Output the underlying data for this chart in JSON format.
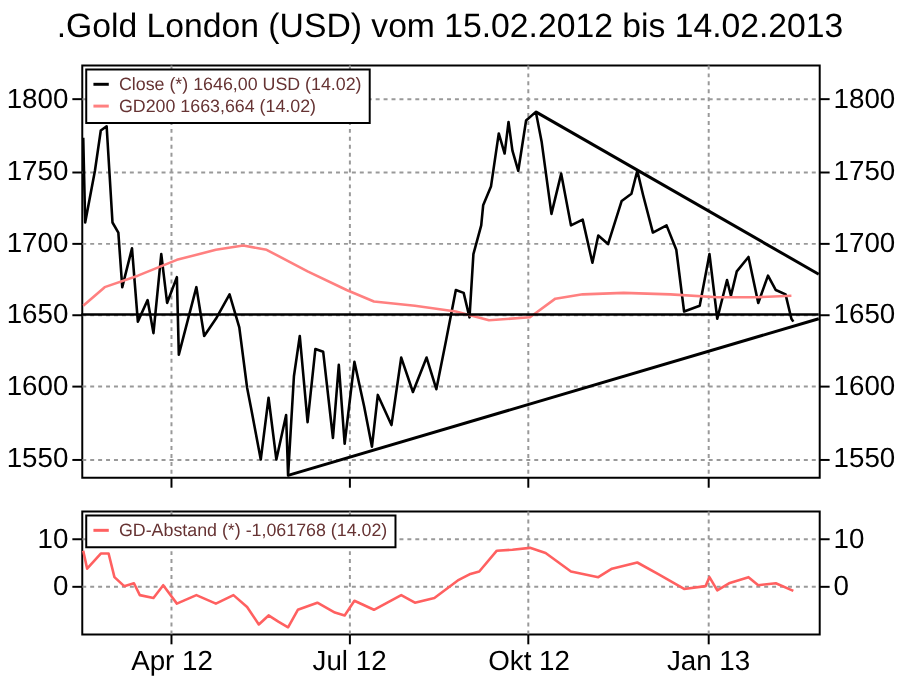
{
  "chart_data": [
    {
      "type": "line",
      "title": ".Gold London (USD) vom 15.02.2012 bis 14.02.2013",
      "xlim": [
        "2012-02-15",
        "2013-02-27"
      ],
      "xticks": [
        {
          "value": "2012-04-01",
          "label": null
        },
        {
          "value": "2012-07-01",
          "label": null
        },
        {
          "value": "2012-10-01",
          "label": null
        },
        {
          "value": "2013-01-01",
          "label": null
        }
      ],
      "ylim": [
        1537,
        1824
      ],
      "yticks": [
        1550,
        1600,
        1650,
        1700,
        1750,
        1800
      ],
      "y2lim": [
        1537,
        1824
      ],
      "y2ticks": [
        1550,
        1600,
        1650,
        1700,
        1750,
        1800
      ],
      "tick_labels": "y",
      "grid": true,
      "legend": "top left",
      "line_style": "solid",
      "marker": "none",
      "ref_lines": [
        {
          "axis": "y",
          "value": 1650,
          "color": "#000000"
        }
      ],
      "series": [
        {
          "name": "Close (*) 1646,00 USD (14.02)",
          "color": "#000000",
          "x": [
            "2012-02-16",
            "2012-02-17",
            "2012-02-22",
            "2012-02-25",
            "2012-02-28",
            "2012-03-02",
            "2012-03-05",
            "2012-03-07",
            "2012-03-12",
            "2012-03-15",
            "2012-03-20",
            "2012-03-23",
            "2012-03-27",
            "2012-03-30",
            "2012-04-04",
            "2012-04-05",
            "2012-04-14",
            "2012-04-18",
            "2012-04-24",
            "2012-05-01",
            "2012-05-06",
            "2012-05-10",
            "2012-05-12",
            "2012-05-17",
            "2012-05-21",
            "2012-05-25",
            "2012-05-30",
            "2012-05-31",
            "2012-06-03",
            "2012-06-06",
            "2012-06-10",
            "2012-06-14",
            "2012-06-18",
            "2012-06-23",
            "2012-06-26",
            "2012-06-29",
            "2012-07-04",
            "2012-07-09",
            "2012-07-13",
            "2012-07-16",
            "2012-07-23",
            "2012-07-28",
            "2012-08-03",
            "2012-08-10",
            "2012-08-15",
            "2012-08-20",
            "2012-08-25",
            "2012-08-29",
            "2012-09-01",
            "2012-09-03",
            "2012-09-07",
            "2012-09-08",
            "2012-09-12",
            "2012-09-16",
            "2012-09-19",
            "2012-09-21",
            "2012-09-23",
            "2012-09-26",
            "2012-09-30",
            "2012-10-05",
            "2012-10-08",
            "2012-10-13",
            "2012-10-18",
            "2012-10-23",
            "2012-10-29",
            "2012-11-03",
            "2012-11-06",
            "2012-11-11",
            "2012-11-18",
            "2012-11-23",
            "2012-11-26",
            "2012-11-29",
            "2012-12-04",
            "2012-12-11",
            "2012-12-16",
            "2012-12-20",
            "2012-12-28",
            "2013-01-02",
            "2013-01-06",
            "2013-01-11",
            "2013-01-13",
            "2013-01-16",
            "2013-01-22",
            "2013-01-27",
            "2013-02-01",
            "2013-02-05",
            "2013-02-10",
            "2013-02-13",
            "2013-02-14"
          ],
          "values": [
            1773,
            1714,
            1750,
            1778,
            1781,
            1714,
            1707,
            1669,
            1696,
            1645,
            1660,
            1637,
            1692,
            1658,
            1676,
            1622,
            1669,
            1635,
            1647,
            1664,
            1641,
            1599,
            1585,
            1549,
            1592,
            1549,
            1580,
            1538,
            1607,
            1635,
            1575,
            1626,
            1624,
            1564,
            1615,
            1560,
            1617,
            1586,
            1558,
            1594,
            1573,
            1620,
            1596,
            1620,
            1598,
            1632,
            1667,
            1665,
            1648,
            1692,
            1712,
            1726,
            1739,
            1776,
            1762,
            1784,
            1764,
            1750,
            1785,
            1791,
            1770,
            1720,
            1748,
            1712,
            1716,
            1686,
            1705,
            1699,
            1729,
            1734,
            1750,
            1733,
            1707,
            1712,
            1695,
            1652,
            1656,
            1692,
            1647,
            1674,
            1663,
            1680,
            1690,
            1658,
            1677,
            1667,
            1664,
            1647,
            1645
          ]
        },
        {
          "name": "GD200 1663,664 (14.02)",
          "color": "#ff8080",
          "x": [
            "2012-02-16",
            "2012-02-27",
            "2012-03-15",
            "2012-04-04",
            "2012-04-24",
            "2012-05-08",
            "2012-05-20",
            "2012-06-10",
            "2012-06-30",
            "2012-07-14",
            "2012-08-04",
            "2012-08-25",
            "2012-09-11",
            "2012-10-02",
            "2012-10-15",
            "2012-10-29",
            "2012-11-19",
            "2012-12-13",
            "2013-01-06",
            "2013-01-26",
            "2013-02-13"
          ],
          "values": [
            1656,
            1669,
            1677,
            1688,
            1695,
            1698,
            1695,
            1680,
            1667,
            1659,
            1656,
            1652,
            1646,
            1648,
            1661,
            1664,
            1665,
            1664,
            1662,
            1662,
            1663
          ]
        },
        {
          "type": "line",
          "color": "#000000",
          "x": [
            "2012-10-05",
            "2013-02-27"
          ],
          "values": [
            1791,
            1678
          ]
        },
        {
          "type": "line",
          "color": "#000000",
          "x": [
            "2012-05-31",
            "2013-02-27"
          ],
          "values": [
            1538,
            1647
          ]
        }
      ]
    },
    {
      "type": "line",
      "xlim": [
        "2012-02-15",
        "2013-02-27"
      ],
      "xticks": [
        {
          "value": "2012-04-01",
          "label": "Apr 12"
        },
        {
          "value": "2012-07-01",
          "label": "Jul 12"
        },
        {
          "value": "2012-10-01",
          "label": "Okt 12"
        },
        {
          "value": "2013-01-01",
          "label": "Jan 13"
        }
      ],
      "ylim": [
        -10,
        16
      ],
      "yticks": [
        0,
        10
      ],
      "y2lim": [
        -10,
        16
      ],
      "y2ticks": [
        0,
        10
      ],
      "grid": true,
      "legend": "top left",
      "line_style": "solid",
      "marker": "none",
      "series": [
        {
          "name": "GD-Abstand (*) -1,061768 (14.02)",
          "color": "#ff6060",
          "x": [
            "2012-02-16",
            "2012-02-18",
            "2012-02-25",
            "2012-02-29",
            "2012-03-03",
            "2012-03-08",
            "2012-03-13",
            "2012-03-16",
            "2012-03-23",
            "2012-03-28",
            "2012-04-04",
            "2012-04-14",
            "2012-04-24",
            "2012-05-03",
            "2012-05-10",
            "2012-05-16",
            "2012-05-21",
            "2012-05-26",
            "2012-05-31",
            "2012-06-05",
            "2012-06-15",
            "2012-06-24",
            "2012-06-29",
            "2012-07-04",
            "2012-07-14",
            "2012-07-28",
            "2012-08-04",
            "2012-08-14",
            "2012-08-26",
            "2012-09-01",
            "2012-09-06",
            "2012-09-15",
            "2012-09-23",
            "2012-10-02",
            "2012-10-10",
            "2012-10-23",
            "2012-11-06",
            "2012-11-13",
            "2012-11-26",
            "2012-12-07",
            "2012-12-20",
            "2012-12-31",
            "2013-01-02",
            "2013-01-06",
            "2013-01-12",
            "2013-01-22",
            "2013-01-27",
            "2013-02-05",
            "2013-02-14"
          ],
          "values": [
            7.5,
            3.7,
            6.9,
            6.9,
            1.9,
            0.0,
            0.6,
            -1.9,
            -2.5,
            0.2,
            -3.7,
            -1.9,
            -3.7,
            -1.9,
            -4.4,
            -8.1,
            -6.2,
            -7.5,
            -8.7,
            -5.0,
            -3.5,
            -5.6,
            -6.2,
            -3.1,
            -5.0,
            -1.9,
            -3.5,
            -2.5,
            1.2,
            2.5,
            3.1,
            7.5,
            7.7,
            8.1,
            7.0,
            3.1,
            1.9,
            3.7,
            5.0,
            2.5,
            -0.6,
            0.0,
            1.9,
            -0.9,
            0.6,
            1.9,
            0.2,
            0.6,
            -1.0
          ]
        }
      ]
    }
  ]
}
